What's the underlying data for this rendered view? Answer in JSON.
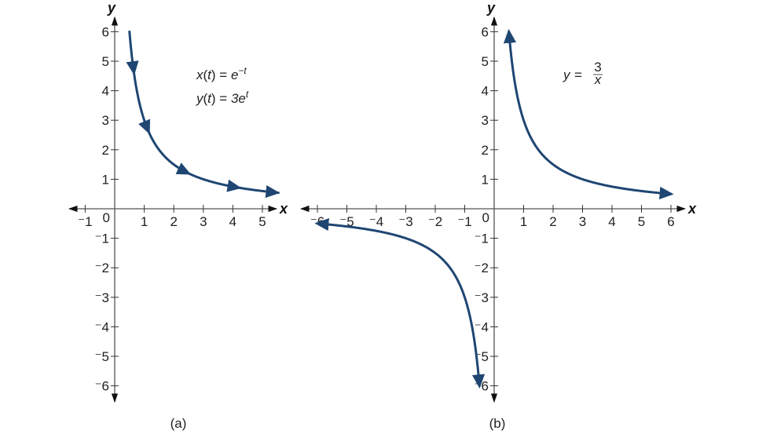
{
  "chart_data": [
    {
      "type": "line",
      "panel_label": "(a)",
      "title": "",
      "xlabel": "x",
      "ylabel": "y",
      "xlim": [
        -1.5,
        5.8
      ],
      "ylim": [
        -6.6,
        6.6
      ],
      "x_ticks": [
        -1,
        1,
        2,
        3,
        4,
        5
      ],
      "y_ticks": [
        -6,
        -5,
        -4,
        -3,
        -2,
        -1,
        1,
        2,
        3,
        4,
        5,
        6
      ],
      "origin_label": "0",
      "grid": false,
      "equations": [
        "x(t) = e^(−t)",
        "y(t) = 3e^t"
      ],
      "series": [
        {
          "name": "parametric curve x(t)=e^(-t), y(t)=3e^t (orientation arrows)",
          "color": "#1f4672",
          "x": [
            0.5,
            0.6,
            0.75,
            1.0,
            1.25,
            1.5,
            2.0,
            2.5,
            3.0,
            3.5,
            4.0,
            4.5,
            5.0,
            5.5
          ],
          "y": [
            6.0,
            5.0,
            4.0,
            3.0,
            2.4,
            2.0,
            1.5,
            1.2,
            1.0,
            0.857,
            0.75,
            0.667,
            0.6,
            0.545
          ],
          "direction_arrows_at_x": [
            0.65,
            1.15,
            2.5,
            4.2,
            5.5
          ]
        }
      ]
    },
    {
      "type": "line",
      "panel_label": "(b)",
      "title": "",
      "xlabel": "x",
      "ylabel": "y",
      "xlim": [
        -6.5,
        6.5
      ],
      "ylim": [
        -6.6,
        6.6
      ],
      "x_ticks": [
        -6,
        -5,
        -4,
        -3,
        -2,
        -1,
        1,
        2,
        3,
        4,
        5,
        6
      ],
      "y_ticks": [
        -6,
        -5,
        -4,
        -3,
        -2,
        -1,
        1,
        2,
        3,
        4,
        5,
        6
      ],
      "origin_label": "0",
      "grid": false,
      "equations": [
        "y = 3/x"
      ],
      "series": [
        {
          "name": "y = 3/x (x > 0 branch)",
          "color": "#1f4672",
          "x": [
            0.5,
            0.6,
            0.75,
            1.0,
            1.5,
            2.0,
            2.5,
            3.0,
            4.0,
            5.0,
            6.0
          ],
          "y": [
            6.0,
            5.0,
            4.0,
            3.0,
            2.0,
            1.5,
            1.2,
            1.0,
            0.75,
            0.6,
            0.5
          ],
          "end_arrows": true
        },
        {
          "name": "y = 3/x (x < 0 branch)",
          "color": "#1f4672",
          "x": [
            -0.5,
            -0.6,
            -0.75,
            -1.0,
            -1.5,
            -2.0,
            -2.5,
            -3.0,
            -4.0,
            -5.0,
            -6.0
          ],
          "y": [
            -6.0,
            -5.0,
            -4.0,
            -3.0,
            -2.0,
            -1.5,
            -1.2,
            -1.0,
            -0.75,
            -0.6,
            -0.5
          ],
          "end_arrows": true
        }
      ]
    }
  ],
  "panels": {
    "a": {
      "label": "(a)",
      "eq1": {
        "lhs_fn": "x",
        "lhs_var": "t",
        "rhs_base": "e",
        "rhs_exp": "−t",
        "rhs_coef": ""
      },
      "eq2": {
        "lhs_fn": "y",
        "lhs_var": "t",
        "rhs_base": "e",
        "rhs_exp": "t",
        "rhs_coef": "3"
      }
    },
    "b": {
      "label": "(b)",
      "eq": {
        "lhs": "y",
        "equals": "=",
        "numerator": "3",
        "denominator": "x"
      }
    }
  },
  "style": {
    "curve_color": "#1f4672",
    "axis_color": "#555555",
    "text_color": "#222222"
  }
}
